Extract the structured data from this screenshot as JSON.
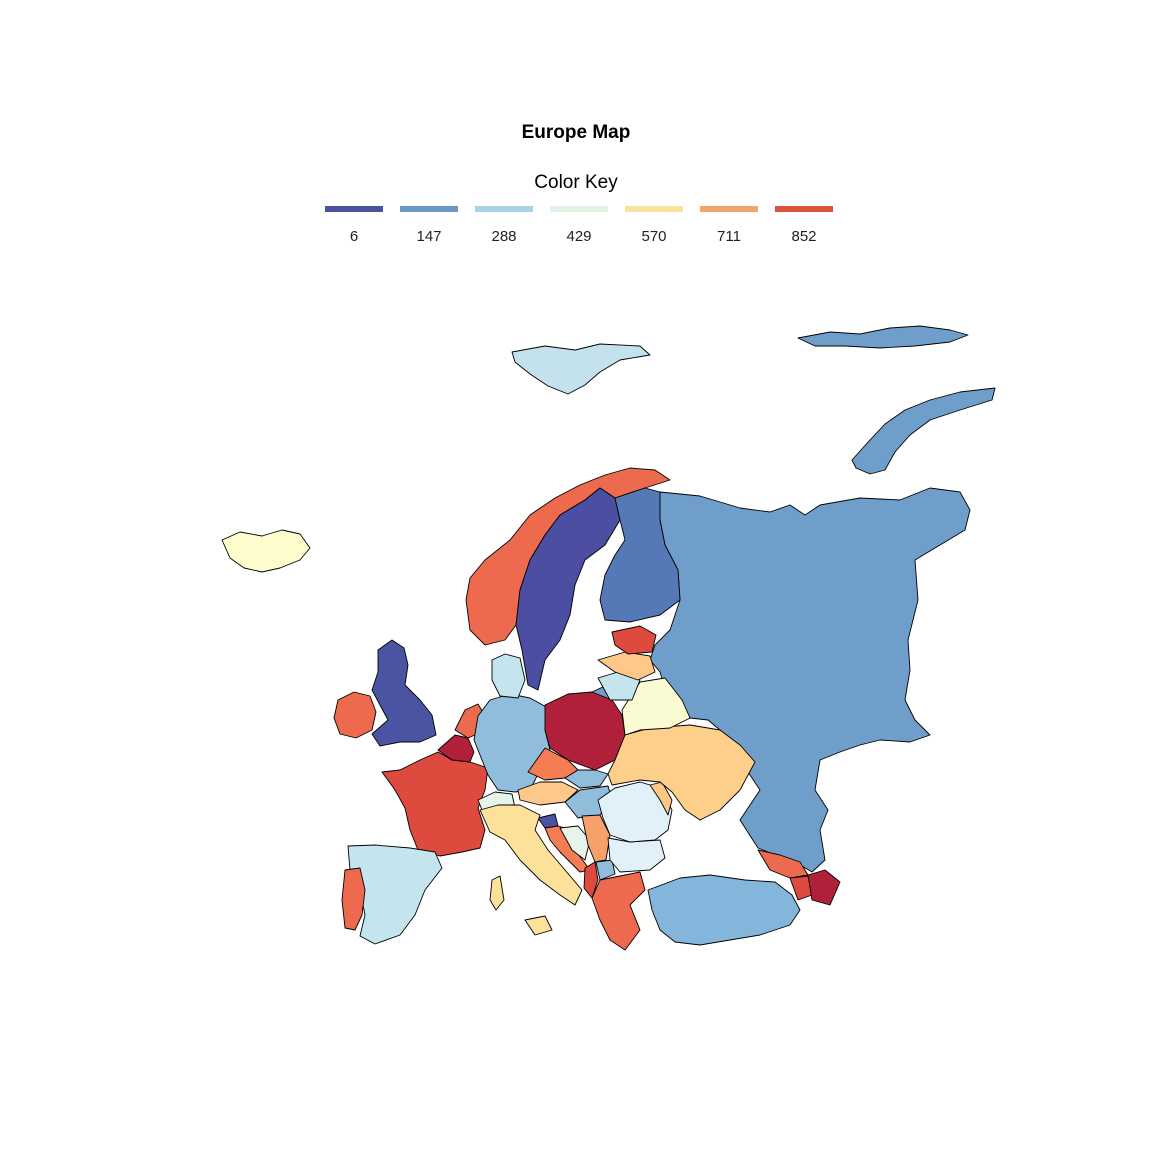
{
  "title": "Europe Map",
  "legend": {
    "title": "Color Key",
    "entries": [
      {
        "label": "6",
        "color": "#4a52a0"
      },
      {
        "label": "147",
        "color": "#6b99c6"
      },
      {
        "label": "288",
        "color": "#a9d1e7"
      },
      {
        "label": "429",
        "color": "#e2f2e3"
      },
      {
        "label": "570",
        "color": "#fbe29b"
      },
      {
        "label": "711",
        "color": "#f6a56a"
      },
      {
        "label": "852",
        "color": "#dd5340"
      }
    ]
  },
  "chart_data": {
    "type": "choropleth",
    "region": "Europe",
    "scale_breaks": [
      6,
      147,
      288,
      429,
      570,
      711,
      852
    ],
    "colors": {
      "russia": "#6f9ecb",
      "svalbard": "#c4e1ee",
      "franz-josef-land": "#6f9ecb",
      "novaya-zemlya": "#6f9ecb",
      "norway": "#ee6a4f",
      "sweden": "#4b4ea1",
      "finland": "#5578b6",
      "iceland": "#fcfccc",
      "united-kingdom": "#4b54a3",
      "ireland": "#ee6a4f",
      "france": "#de4a3e",
      "spain": "#c4e4ee",
      "portugal": "#ee6a4f",
      "belgium": "#b0203a",
      "netherlands": "#ee6a4f",
      "germany": "#90bddc",
      "denmark": "#c4e4ee",
      "poland": "#b0203a",
      "czechia": "#f47d53",
      "austria": "#fdc888",
      "switzerland": "#e6f4ea",
      "italy": "#fde19b",
      "slovenia": "#4b54a3",
      "croatia": "#f47d53",
      "bosnia": "#e6f4ea",
      "serbia": "#f6a06a",
      "hungary": "#90bddc",
      "slovakia": "#90bddc",
      "romania": "#e1f1f7",
      "bulgaria": "#e1f1f7",
      "moldova": "#fcc888",
      "ukraine": "#fdcf8a",
      "belarus": "#fafad3",
      "lithuania": "#c4e4ee",
      "latvia": "#fdc888",
      "estonia": "#de4a3e",
      "greece": "#ee6a4f",
      "albania": "#de4a3e",
      "north-macedonia": "#90bddc",
      "turkey": "#84b5da",
      "georgia": "#ee6a4f",
      "armenia": "#de4a3e",
      "azerbaijan": "#b0203a",
      "kaliningrad": "#6f9ecb"
    }
  }
}
